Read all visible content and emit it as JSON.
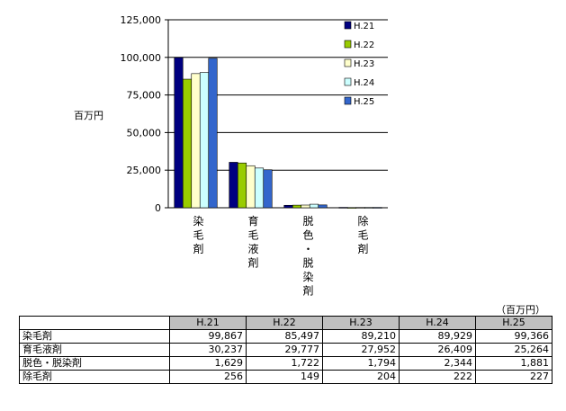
{
  "chart_data": {
    "type": "bar",
    "ylabel": "百万円",
    "ylim": [
      0,
      125000
    ],
    "yticks": [
      "0",
      "25,000",
      "50,000",
      "75,000",
      "100,000",
      "125,000"
    ],
    "ytick_values": [
      0,
      25000,
      50000,
      75000,
      100000,
      125000
    ],
    "grid": true,
    "legend_position": "top-right",
    "categories": [
      "染毛剤",
      "育毛液剤",
      "脱色・脱染剤",
      "除毛剤"
    ],
    "category_display": [
      "染\n毛\n剤",
      "育\n毛\n液\n剤",
      "脱\n色\n・\n脱\n染\n剤",
      "除\n毛\n剤"
    ],
    "series": [
      {
        "name": "H.21",
        "color": "#000080",
        "values": [
          99867,
          30237,
          1629,
          256
        ]
      },
      {
        "name": "H.22",
        "color": "#99cc00",
        "values": [
          85497,
          29777,
          1722,
          149
        ]
      },
      {
        "name": "H.23",
        "color": "#ffffcc",
        "values": [
          89210,
          27952,
          1794,
          204
        ]
      },
      {
        "name": "H.24",
        "color": "#ccffff",
        "values": [
          89929,
          26409,
          2344,
          222
        ]
      },
      {
        "name": "H.25",
        "color": "#3366cc",
        "values": [
          99366,
          25264,
          1881,
          227
        ]
      }
    ]
  },
  "table": {
    "unit_label": "（百万円）",
    "headers": [
      "H.21",
      "H.22",
      "H.23",
      "H.24",
      "H.25"
    ],
    "rows": [
      {
        "label": "染毛剤",
        "values": [
          "99,867",
          "85,497",
          "89,210",
          "89,929",
          "99,366"
        ]
      },
      {
        "label": "育毛液剤",
        "values": [
          "30,237",
          "29,777",
          "27,952",
          "26,409",
          "25,264"
        ]
      },
      {
        "label": "脱色・脱染剤",
        "values": [
          "1,629",
          "1,722",
          "1,794",
          "2,344",
          "1,881"
        ]
      },
      {
        "label": "除毛剤",
        "values": [
          "256",
          "149",
          "204",
          "222",
          "227"
        ]
      }
    ]
  }
}
